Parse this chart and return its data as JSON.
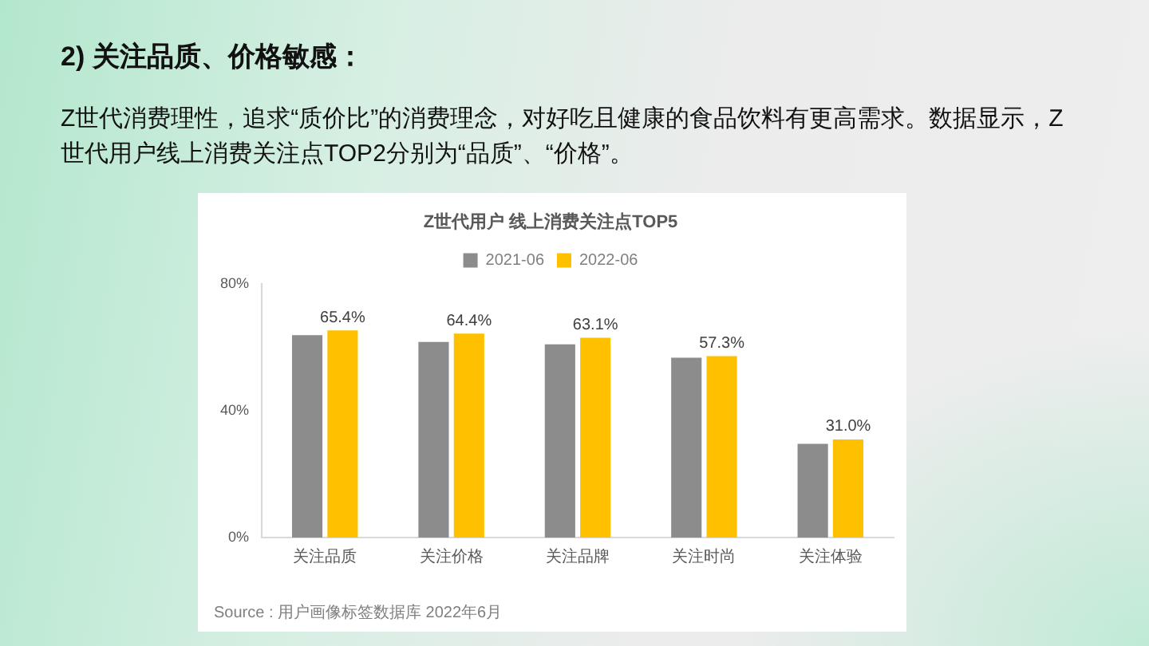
{
  "chart_data": {
    "type": "bar",
    "title": "Z世代用户 线上消费关注点TOP5",
    "categories": [
      "关注品质",
      "关注价格",
      "关注品牌",
      "关注时尚",
      "关注体验"
    ],
    "series": [
      {
        "name": "2021-06",
        "color": "#8c8c8c",
        "values": [
          63.9,
          61.8,
          61.0,
          56.8,
          29.6
        ]
      },
      {
        "name": "2022-06",
        "color": "#ffc000",
        "values": [
          65.4,
          64.4,
          63.1,
          57.3,
          31.0
        ],
        "value_labels": [
          "65.4%",
          "64.4%",
          "63.1%",
          "57.3%",
          "31.0%"
        ]
      }
    ],
    "ylim": [
      0,
      80
    ],
    "yticks": [
      {
        "value": 0,
        "label": "0%"
      },
      {
        "value": 40,
        "label": "40%"
      },
      {
        "value": 80,
        "label": "80%"
      }
    ],
    "grid": false,
    "legend": "top",
    "annotations": [
      "2) 关注品质、价格敏感：",
      "Z世代消费理性，追求“质价比”的消费理念，对好吃且健康的食品饮料有更高需求。数据显示，Z世代用户线上消费关注点TOP2分别为“品质”、“价格”。",
      "Source : 用户画像标签数据库 2022年6月"
    ]
  }
}
